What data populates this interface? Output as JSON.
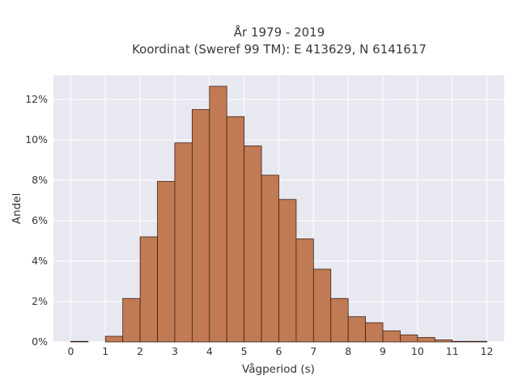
{
  "chart_data": {
    "type": "bar",
    "title_line1": "År 1979 - 2019",
    "title_line2": "Koordinat (Sweref 99 TM): E 413629, N 6141617",
    "xlabel": "Vågperiod (s)",
    "ylabel": "Andel",
    "x_ticks": [
      "0",
      "1",
      "2",
      "3",
      "4",
      "5",
      "6",
      "7",
      "8",
      "9",
      "10",
      "11",
      "12"
    ],
    "y_ticks": [
      "0%",
      "2%",
      "4%",
      "6%",
      "8%",
      "10%",
      "12%"
    ],
    "xlim": [
      -0.5,
      12.5
    ],
    "ylim": [
      0,
      13.2
    ],
    "bin_width": 0.5,
    "bins": [
      {
        "start": 0.0,
        "value": 0.03
      },
      {
        "start": 0.5,
        "value": 0.0
      },
      {
        "start": 1.0,
        "value": 0.28
      },
      {
        "start": 1.5,
        "value": 2.15
      },
      {
        "start": 2.0,
        "value": 5.2
      },
      {
        "start": 2.5,
        "value": 7.95
      },
      {
        "start": 3.0,
        "value": 9.85
      },
      {
        "start": 3.5,
        "value": 11.5
      },
      {
        "start": 4.0,
        "value": 12.65
      },
      {
        "start": 4.5,
        "value": 11.15
      },
      {
        "start": 5.0,
        "value": 9.7
      },
      {
        "start": 5.5,
        "value": 8.25
      },
      {
        "start": 6.0,
        "value": 7.05
      },
      {
        "start": 6.5,
        "value": 5.1
      },
      {
        "start": 7.0,
        "value": 3.6
      },
      {
        "start": 7.5,
        "value": 2.15
      },
      {
        "start": 8.0,
        "value": 1.25
      },
      {
        "start": 8.5,
        "value": 0.95
      },
      {
        "start": 9.0,
        "value": 0.55
      },
      {
        "start": 9.5,
        "value": 0.35
      },
      {
        "start": 10.0,
        "value": 0.22
      },
      {
        "start": 10.5,
        "value": 0.1
      },
      {
        "start": 11.0,
        "value": 0.03
      },
      {
        "start": 11.5,
        "value": 0.03
      }
    ],
    "grid": true,
    "colors": {
      "bar_fill": "#c07a54",
      "bar_stroke": "#3d2416",
      "plot_background": "#e8e8f1",
      "grid": "#ffffff"
    }
  }
}
